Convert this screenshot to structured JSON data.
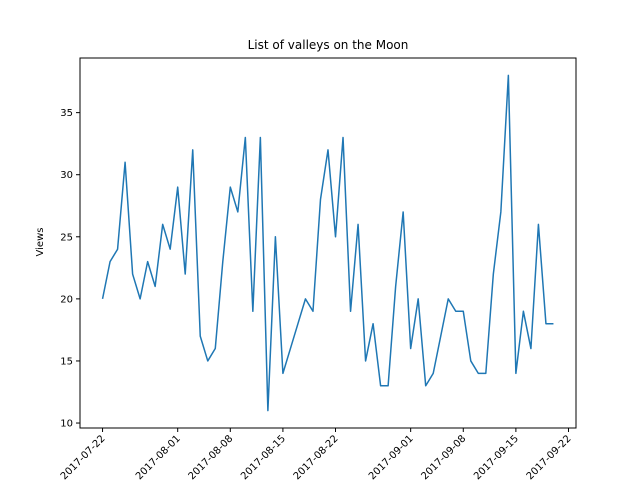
{
  "chart_data": {
    "type": "line",
    "title": "List of valleys on the Moon",
    "xlabel": "",
    "ylabel": "Views",
    "x_tick_labels": [
      "2017-07-22",
      "2017-08-01",
      "2017-08-08",
      "2017-08-15",
      "2017-08-22",
      "2017-09-01",
      "2017-09-08",
      "2017-09-15",
      "2017-09-22"
    ],
    "y_ticks": [
      10,
      15,
      20,
      25,
      30,
      35
    ],
    "xlim": [
      "2017-07-19",
      "2017-09-23"
    ],
    "ylim": [
      9.6,
      39.4
    ],
    "color": "#1f77b4",
    "grid": false,
    "series": [
      {
        "x": [
          "2017-07-22",
          "2017-07-23",
          "2017-07-24",
          "2017-07-25",
          "2017-07-26",
          "2017-07-27",
          "2017-07-28",
          "2017-07-29",
          "2017-07-30",
          "2017-07-31",
          "2017-08-01",
          "2017-08-02",
          "2017-08-03",
          "2017-08-04",
          "2017-08-05",
          "2017-08-06",
          "2017-08-07",
          "2017-08-08",
          "2017-08-09",
          "2017-08-10",
          "2017-08-11",
          "2017-08-12",
          "2017-08-13",
          "2017-08-14",
          "2017-08-15",
          "2017-08-16",
          "2017-08-17",
          "2017-08-18",
          "2017-08-19",
          "2017-08-20",
          "2017-08-21",
          "2017-08-22",
          "2017-08-23",
          "2017-08-24",
          "2017-08-25",
          "2017-08-26",
          "2017-08-27",
          "2017-08-28",
          "2017-08-29",
          "2017-08-30",
          "2017-08-31",
          "2017-09-01",
          "2017-09-02",
          "2017-09-03",
          "2017-09-04",
          "2017-09-05",
          "2017-09-06",
          "2017-09-07",
          "2017-09-08",
          "2017-09-09",
          "2017-09-10",
          "2017-09-11",
          "2017-09-12",
          "2017-09-13",
          "2017-09-14",
          "2017-09-15",
          "2017-09-16",
          "2017-09-17",
          "2017-09-18",
          "2017-09-19",
          "2017-09-20"
        ],
        "y": [
          20,
          23,
          24,
          31,
          22,
          20,
          23,
          21,
          26,
          24,
          29,
          22,
          32,
          17,
          15,
          16,
          23,
          29,
          27,
          33,
          19,
          33,
          11,
          25,
          14,
          16,
          18,
          20,
          19,
          28,
          32,
          25,
          33,
          19,
          26,
          15,
          18,
          13,
          13,
          21,
          27,
          16,
          20,
          13,
          14,
          17,
          20,
          19,
          19,
          15,
          14,
          14,
          22,
          27,
          38,
          14,
          19,
          16,
          26,
          18,
          18
        ]
      }
    ]
  }
}
